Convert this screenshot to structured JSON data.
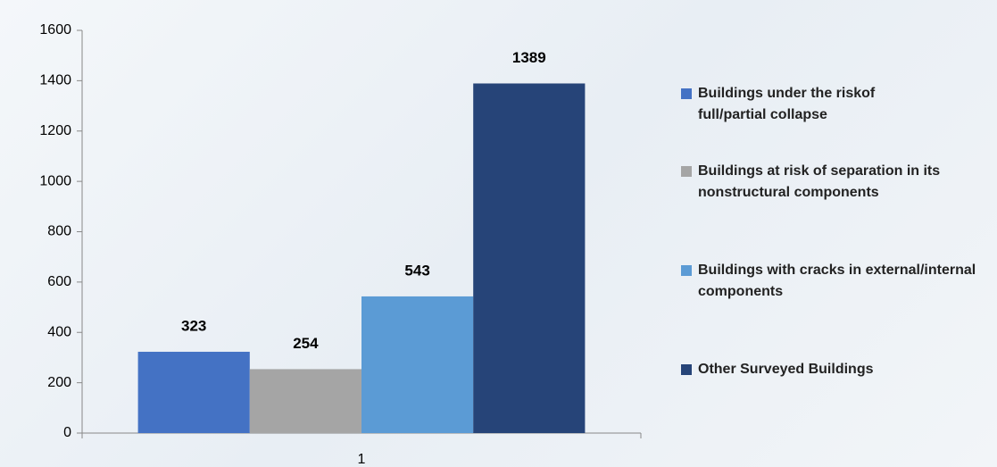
{
  "chart_data": {
    "type": "bar",
    "categories": [
      "1"
    ],
    "series": [
      {
        "name": "Buildings under the riskof full/partial collapse",
        "color": "#4472c4",
        "values": [
          323
        ]
      },
      {
        "name": "Buildings at risk of separation in its nonstructural components",
        "color": "#a5a5a5",
        "values": [
          254
        ]
      },
      {
        "name": "Buildings with cracks in external/internal components",
        "color": "#5b9bd5",
        "values": [
          543
        ]
      },
      {
        "name": "Other Surveyed Buildings",
        "color": "#264478",
        "values": [
          1389
        ]
      }
    ],
    "ylim": [
      0,
      1600
    ],
    "yticks": [
      0,
      200,
      400,
      600,
      800,
      1000,
      1200,
      1400,
      1600
    ],
    "grid": false,
    "legend": "right"
  }
}
